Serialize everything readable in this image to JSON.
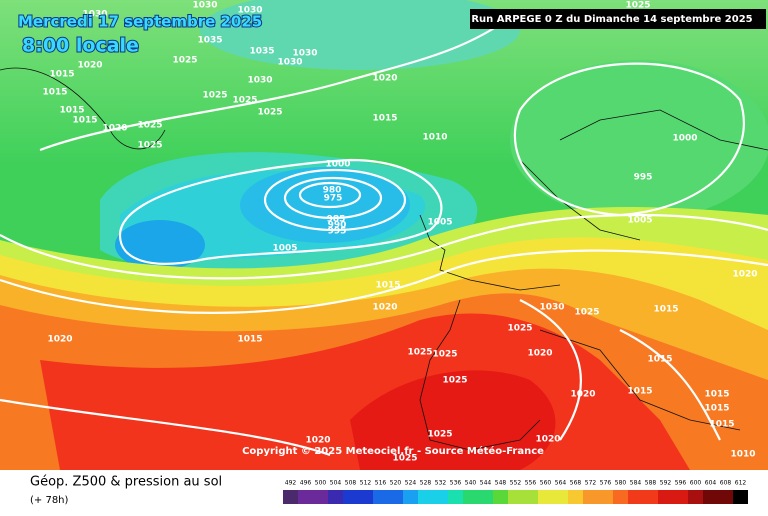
{
  "header": {
    "date": "Mercredi 17 septembre 2025",
    "time": "8:00 locale",
    "run": "Run ARPEGE 0 Z du Dimanche 14 septembre 2025"
  },
  "isobars": {
    "labels": [
      1030,
      1030,
      1030,
      1035,
      1020,
      1025,
      1035,
      1030,
      1030,
      1015,
      1020,
      1015,
      1025,
      1030,
      1025,
      1015,
      1015,
      1020,
      1025,
      1025,
      1025,
      1015,
      1010,
      1000,
      980,
      975,
      985,
      990,
      995,
      1005,
      1005,
      1000,
      995,
      1005,
      1025,
      1020,
      1015,
      1020,
      1030,
      1025,
      1015,
      1025,
      1015,
      1020,
      1025,
      1025,
      1020,
      1015,
      1025,
      1015,
      1015,
      1020,
      1015,
      1015,
      1025,
      1020,
      1020,
      1010,
      1025
    ]
  },
  "footer": {
    "copyright": "Copyright © 2025 Meteociel.fr - Source Météo-France",
    "title": "Géop. Z500 & pression au sol",
    "lead": "(+ 78h)"
  },
  "scale": {
    "values": [
      492,
      496,
      500,
      504,
      508,
      512,
      516,
      520,
      524,
      528,
      532,
      536,
      540,
      544,
      548,
      552,
      556,
      560,
      564,
      568,
      572,
      576,
      580,
      584,
      588,
      592,
      596,
      600,
      604,
      608,
      612
    ]
  }
}
